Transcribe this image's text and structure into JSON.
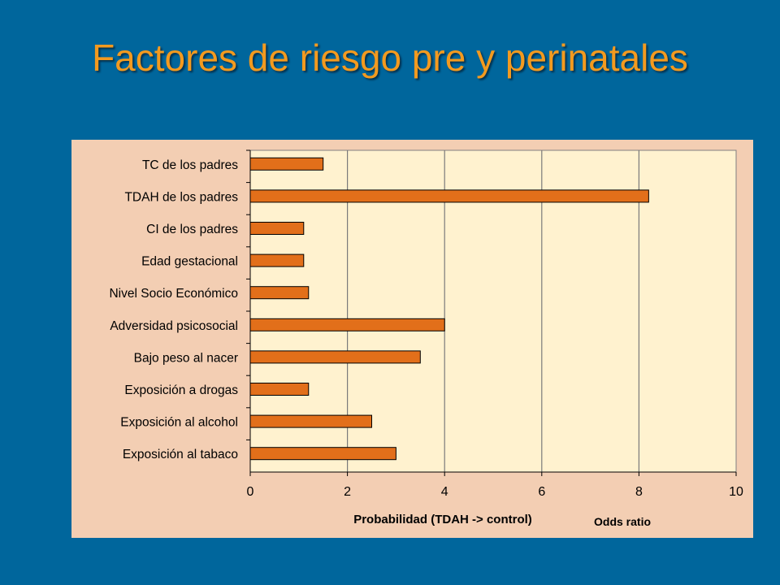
{
  "slide": {
    "title": "Factores de riesgo pre y perinatales",
    "odds_note": "Odds ratio"
  },
  "colors": {
    "background": "#00669c",
    "title": "#f39a1f",
    "panel": "#f3ceb3",
    "plot_area": "#fff2cf",
    "bar": "#e26f1a"
  },
  "chart_data": {
    "type": "bar",
    "orientation": "horizontal",
    "categories": [
      "TC de los padres",
      "TDAH de los padres",
      "CI de los padres",
      "Edad gestacional",
      "Nivel Socio Económico",
      "Adversidad psicosocial",
      "Bajo peso al nacer",
      "Exposición a drogas",
      "Exposición al alcohol",
      "Exposición al tabaco"
    ],
    "values": [
      1.5,
      8.2,
      1.1,
      1.1,
      1.2,
      4.0,
      3.5,
      1.2,
      2.5,
      3.0
    ],
    "xlabel": "Probabilidad (TDAH -> control)",
    "xlim": [
      0,
      10
    ],
    "xticks": [
      "0",
      "2",
      "4",
      "6",
      "8",
      "10"
    ],
    "grid": "vertical",
    "legend": "none"
  }
}
